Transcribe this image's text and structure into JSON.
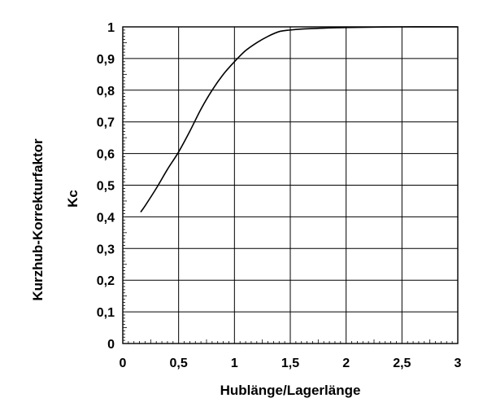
{
  "chart_data": {
    "type": "line",
    "title": "",
    "xlabel": "Hublänge/Lagerlänge",
    "ylabel": "Kurzhub-Korrekturfaktor",
    "ylabel2": "Kc",
    "xlim": [
      0,
      3
    ],
    "ylim": [
      0,
      1
    ],
    "grid": true,
    "x_ticks": [
      0,
      0.5,
      1,
      1.5,
      2,
      2.5,
      3
    ],
    "x_tick_labels": [
      "0",
      "0,5",
      "1",
      "1,5",
      "2",
      "2,5",
      "3"
    ],
    "y_ticks": [
      0,
      0.1,
      0.2,
      0.3,
      0.4,
      0.5,
      0.6,
      0.7,
      0.8,
      0.9,
      1
    ],
    "y_tick_labels": [
      "0",
      "0,1",
      "0,2",
      "0,3",
      "0,4",
      "0,5",
      "0,6",
      "0,7",
      "0,8",
      "0,9",
      "1"
    ],
    "series": [
      {
        "x": [
          0.16,
          0.2,
          0.3,
          0.4,
          0.5,
          0.6,
          0.7,
          0.8,
          0.9,
          1.0,
          1.1,
          1.2,
          1.3,
          1.4,
          1.5,
          1.6,
          1.8,
          2.0,
          2.5,
          3.0
        ],
        "values": [
          0.415,
          0.435,
          0.49,
          0.55,
          0.605,
          0.67,
          0.74,
          0.8,
          0.85,
          0.89,
          0.925,
          0.95,
          0.97,
          0.985,
          0.99,
          0.993,
          0.996,
          0.998,
          1.0,
          1.0
        ]
      }
    ],
    "colors": {
      "line": "#000000",
      "grid": "#000000",
      "background": "#ffffff"
    }
  }
}
